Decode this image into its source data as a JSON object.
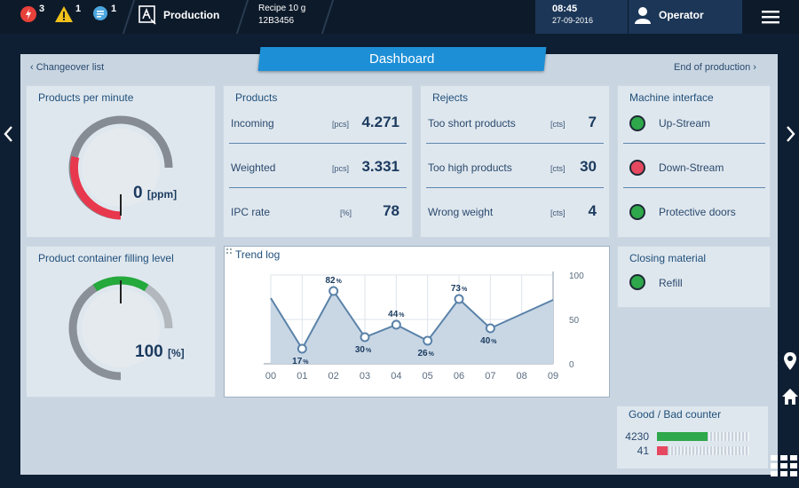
{
  "topbar": {
    "alerts": [
      {
        "icon": "stop-icon",
        "count": "3",
        "color": "#e8403a"
      },
      {
        "icon": "warning-icon",
        "count": "1",
        "color": "#f2c21b"
      },
      {
        "icon": "message-icon",
        "count": "1",
        "color": "#4ca6e0"
      }
    ],
    "mode_icon": "production-mode-icon",
    "mode": "Production",
    "recipe_name": "Recipe 10 g",
    "recipe_code": "12B3456",
    "time": "08:45",
    "date": "27-09-2016",
    "user": "Operator"
  },
  "nav": {
    "title": "Dashboard",
    "prev": "Changeover list",
    "next": "End of production"
  },
  "ppm": {
    "title": "Products per minute",
    "value": "0",
    "unit": "[ppm]",
    "level": 0
  },
  "products": {
    "title": "Products",
    "rows": [
      {
        "label": "Incoming",
        "unit": "[pcs]",
        "value": "4.271"
      },
      {
        "label": "Weighted",
        "unit": "[pcs]",
        "value": "3.331"
      },
      {
        "label": "IPC rate",
        "unit": "[%]",
        "value": "78"
      }
    ]
  },
  "rejects": {
    "title": "Rejects",
    "rows": [
      {
        "label": "Too short products",
        "unit": "[cts]",
        "value": "7"
      },
      {
        "label": "Too high products",
        "unit": "[cts]",
        "value": "30"
      },
      {
        "label": "Wrong weight",
        "unit": "[cts]",
        "value": "4"
      }
    ]
  },
  "machine": {
    "title": "Machine interface",
    "rows": [
      {
        "label": "Up-Stream",
        "status": "green"
      },
      {
        "label": "Down-Stream",
        "status": "red"
      },
      {
        "label": "Protective doors",
        "status": "green"
      }
    ]
  },
  "filling": {
    "title": "Product container filling level",
    "value": "100",
    "unit": "[%]",
    "level": 100
  },
  "closing": {
    "title": "Closing material",
    "label": "Refill",
    "status": "green"
  },
  "trend": {
    "title": "Trend log"
  },
  "chart_data": {
    "type": "area",
    "x": [
      "00",
      "01",
      "02",
      "03",
      "04",
      "05",
      "06",
      "07",
      "08",
      "09"
    ],
    "points": [
      {
        "x": "00",
        "y": 74
      },
      {
        "x": "01",
        "y": 17,
        "label": "17"
      },
      {
        "x": "02",
        "y": 82,
        "label": "82"
      },
      {
        "x": "03",
        "y": 30,
        "label": "30"
      },
      {
        "x": "04",
        "y": 44,
        "label": "44"
      },
      {
        "x": "05",
        "y": 26,
        "label": "26"
      },
      {
        "x": "06",
        "y": 73,
        "label": "73"
      },
      {
        "x": "07",
        "y": 40,
        "label": "40"
      },
      {
        "x": "08",
        "y": 56
      },
      {
        "x": "09",
        "y": 72
      }
    ],
    "label_unit": "%",
    "yticks": [
      "0",
      "50",
      "100"
    ],
    "ylim": [
      0,
      100
    ],
    "grid": true
  },
  "counter": {
    "title": "Good / Bad counter",
    "good": "4230",
    "bad": "41",
    "good_level": 0.55,
    "bad_level": 0.12,
    "good_color": "#2ea84a",
    "bad_color": "#e64860"
  },
  "side_icons": [
    "location-icon",
    "home-icon",
    "grid-icon"
  ]
}
